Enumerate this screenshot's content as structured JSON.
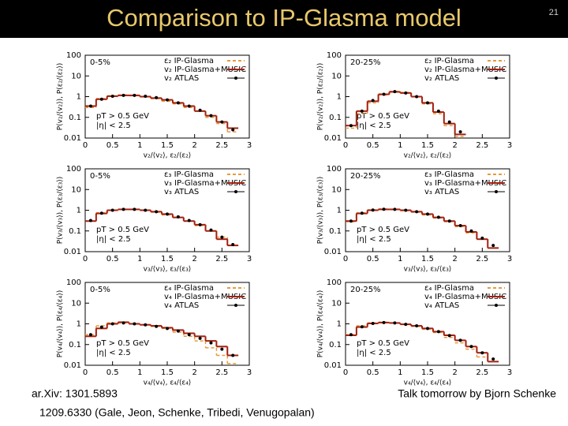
{
  "header": {
    "title": "Comparison to IP-Glasma model",
    "page_number": "21"
  },
  "footer": {
    "left_1": "ar.Xiv: 1301.5893",
    "left_2": "1209.6330 (Gale, Jeon, Schenke, Tribedi, Venugopalan)",
    "right": "Talk tomorrow by Bjorn Schenke"
  },
  "chart_data": [
    {
      "type": "line",
      "centrality": "0-5%",
      "xlabel": "v₂/⟨v₂⟩, ε₂/⟨ε₂⟩",
      "ylabel": "P(v₂/⟨v₂⟩), P(ε₂/⟨ε₂⟩)",
      "annotations": [
        "pT > 0.5 GeV",
        "|η| < 2.5"
      ],
      "log_scale": true,
      "xlim": [
        0,
        3
      ],
      "ylim": [
        0.01,
        100
      ],
      "xticks": [
        0,
        0.5,
        1,
        1.5,
        2,
        2.5,
        3
      ],
      "yticks": [
        0.01,
        0.1,
        1,
        10,
        100
      ],
      "x": [
        0.1,
        0.3,
        0.5,
        0.7,
        0.9,
        1.1,
        1.3,
        1.5,
        1.7,
        1.9,
        2.1,
        2.3,
        2.5,
        2.7,
        2.9
      ],
      "series": [
        {
          "name": "ε₂ IP-Glasma",
          "color": "#e89a3c",
          "style": "dashed",
          "values": [
            0.3,
            0.8,
            1.1,
            1.2,
            1.1,
            1.0,
            0.8,
            0.6,
            0.45,
            0.3,
            0.2,
            0.1,
            0.05,
            0.02,
            null
          ]
        },
        {
          "name": "v₂ IP-Glasma+MUSIC",
          "color": "#a3200f",
          "style": "solid",
          "values": [
            0.35,
            0.75,
            1.05,
            1.15,
            1.15,
            1.0,
            0.85,
            0.7,
            0.5,
            0.35,
            0.2,
            0.12,
            0.06,
            0.03,
            null
          ]
        },
        {
          "name": "v₂ ATLAS",
          "color": "#000000",
          "style": "points",
          "values": [
            0.35,
            0.75,
            1.05,
            1.15,
            1.15,
            1.05,
            0.9,
            0.7,
            0.5,
            0.35,
            0.22,
            0.12,
            0.06,
            0.025,
            null
          ]
        }
      ]
    },
    {
      "type": "line",
      "centrality": "20-25%",
      "xlabel": "v₂/⟨v₂⟩, ε₂/⟨ε₂⟩",
      "ylabel": "P(v₂/⟨v₂⟩), P(ε₂/⟨ε₂⟩)",
      "annotations": [
        "pT > 0.5 GeV",
        "|η| < 2.5"
      ],
      "log_scale": true,
      "xlim": [
        0,
        3
      ],
      "ylim": [
        0.01,
        100
      ],
      "xticks": [
        0,
        0.5,
        1,
        1.5,
        2,
        2.5,
        3
      ],
      "yticks": [
        0.01,
        0.1,
        1,
        10,
        100
      ],
      "x": [
        0.1,
        0.3,
        0.5,
        0.7,
        0.9,
        1.1,
        1.3,
        1.5,
        1.7,
        1.9,
        2.1,
        2.3,
        2.5,
        2.7,
        2.9
      ],
      "series": [
        {
          "name": "ε₂ IP-Glasma",
          "color": "#e89a3c",
          "style": "dashed",
          "values": [
            0.03,
            0.15,
            0.5,
            1.2,
            1.8,
            1.6,
            1.0,
            0.45,
            0.15,
            0.04,
            0.012,
            null,
            null,
            null,
            null
          ]
        },
        {
          "name": "v₂ IP-Glasma+MUSIC",
          "color": "#a3200f",
          "style": "solid",
          "values": [
            0.04,
            0.2,
            0.6,
            1.3,
            1.7,
            1.5,
            1.0,
            0.5,
            0.18,
            0.05,
            0.015,
            null,
            null,
            null,
            null
          ]
        },
        {
          "name": "v₂ ATLAS",
          "color": "#000000",
          "style": "points",
          "values": [
            0.04,
            0.2,
            0.65,
            1.3,
            1.75,
            1.5,
            1.0,
            0.5,
            0.2,
            0.06,
            0.02,
            null,
            null,
            null,
            null
          ]
        }
      ]
    },
    {
      "type": "line",
      "centrality": "0-5%",
      "xlabel": "v₃/⟨v₃⟩, ε₃/⟨ε₃⟩",
      "ylabel": "P(v₃/⟨v₃⟩), P(ε₃/⟨ε₃⟩)",
      "annotations": [
        "pT > 0.5 GeV",
        "|η| < 2.5"
      ],
      "log_scale": true,
      "xlim": [
        0,
        3
      ],
      "ylim": [
        0.01,
        100
      ],
      "xticks": [
        0,
        0.5,
        1,
        1.5,
        2,
        2.5,
        3
      ],
      "yticks": [
        0.01,
        0.1,
        1,
        10,
        100
      ],
      "x": [
        0.1,
        0.3,
        0.5,
        0.7,
        0.9,
        1.1,
        1.3,
        1.5,
        1.7,
        1.9,
        2.1,
        2.3,
        2.5,
        2.7,
        2.9
      ],
      "series": [
        {
          "name": "ε₃ IP-Glasma",
          "color": "#e89a3c",
          "style": "dashed",
          "values": [
            0.3,
            0.75,
            1.0,
            1.1,
            1.1,
            1.0,
            0.8,
            0.6,
            0.45,
            0.3,
            0.18,
            0.1,
            0.05,
            0.02,
            null
          ]
        },
        {
          "name": "v₃ IP-Glasma+MUSIC",
          "color": "#a3200f",
          "style": "solid",
          "values": [
            0.3,
            0.7,
            1.0,
            1.1,
            1.1,
            1.0,
            0.85,
            0.65,
            0.45,
            0.3,
            0.2,
            0.1,
            0.04,
            0.02,
            null
          ]
        },
        {
          "name": "v₃ ATLAS",
          "color": "#000000",
          "style": "points",
          "values": [
            0.32,
            0.72,
            1.0,
            1.1,
            1.1,
            1.0,
            0.85,
            0.65,
            0.48,
            0.32,
            0.2,
            0.11,
            0.05,
            0.022,
            null
          ]
        }
      ]
    },
    {
      "type": "line",
      "centrality": "20-25%",
      "xlabel": "v₃/⟨v₃⟩, ε₃/⟨ε₃⟩",
      "ylabel": "P(v₃/⟨v₃⟩), P(ε₃/⟨ε₃⟩)",
      "annotations": [
        "pT > 0.5 GeV",
        "|η| < 2.5"
      ],
      "log_scale": true,
      "xlim": [
        0,
        3
      ],
      "ylim": [
        0.01,
        100
      ],
      "xticks": [
        0,
        0.5,
        1,
        1.5,
        2,
        2.5,
        3
      ],
      "yticks": [
        0.01,
        0.1,
        1,
        10,
        100
      ],
      "x": [
        0.1,
        0.3,
        0.5,
        0.7,
        0.9,
        1.1,
        1.3,
        1.5,
        1.7,
        1.9,
        2.1,
        2.3,
        2.5,
        2.7,
        2.9
      ],
      "series": [
        {
          "name": "ε₃ IP-Glasma",
          "color": "#e89a3c",
          "style": "dashed",
          "values": [
            0.28,
            0.75,
            1.05,
            1.15,
            1.1,
            0.95,
            0.8,
            0.6,
            0.42,
            0.28,
            0.16,
            0.08,
            0.04,
            0.015,
            null
          ]
        },
        {
          "name": "v₃ IP-Glasma+MUSIC",
          "color": "#a3200f",
          "style": "solid",
          "values": [
            0.3,
            0.7,
            1.0,
            1.1,
            1.1,
            1.0,
            0.85,
            0.65,
            0.45,
            0.3,
            0.18,
            0.09,
            0.04,
            0.015,
            null
          ]
        },
        {
          "name": "v₃ ATLAS",
          "color": "#000000",
          "style": "points",
          "values": [
            0.3,
            0.72,
            1.02,
            1.12,
            1.1,
            1.0,
            0.85,
            0.65,
            0.46,
            0.3,
            0.18,
            0.1,
            0.045,
            0.02,
            null
          ]
        }
      ]
    },
    {
      "type": "line",
      "centrality": "0-5%",
      "xlabel": "v₄/⟨v₄⟩, ε₄/⟨ε₄⟩",
      "ylabel": "P(v₄/⟨v₄⟩), P(ε₄/⟨ε₄⟩)",
      "annotations": [
        "pT > 0.5 GeV",
        "|η| < 2.5"
      ],
      "log_scale": true,
      "xlim": [
        0,
        3
      ],
      "ylim": [
        0.01,
        100
      ],
      "xticks": [
        0,
        0.5,
        1,
        1.5,
        2,
        2.5,
        3
      ],
      "yticks": [
        0.01,
        0.1,
        1,
        10,
        100
      ],
      "x": [
        0.1,
        0.3,
        0.5,
        0.7,
        0.9,
        1.1,
        1.3,
        1.5,
        1.7,
        1.9,
        2.1,
        2.3,
        2.5,
        2.7,
        2.9
      ],
      "series": [
        {
          "name": "ε₄ IP-Glasma",
          "color": "#e89a3c",
          "style": "dashed",
          "values": [
            0.3,
            0.8,
            1.1,
            1.1,
            1.0,
            0.9,
            0.75,
            0.6,
            0.4,
            0.25,
            0.15,
            0.07,
            0.03,
            0.012,
            null
          ]
        },
        {
          "name": "v₄ IP-Glasma+MUSIC",
          "color": "#a3200f",
          "style": "solid",
          "values": [
            0.25,
            0.6,
            1.0,
            1.2,
            1.0,
            0.9,
            0.8,
            0.65,
            0.5,
            0.35,
            0.25,
            0.15,
            0.08,
            0.03,
            null
          ]
        },
        {
          "name": "v₄ ATLAS",
          "color": "#000000",
          "style": "points",
          "values": [
            0.3,
            0.7,
            1.0,
            1.1,
            1.0,
            0.9,
            0.75,
            0.6,
            0.45,
            0.3,
            0.2,
            0.12,
            0.06,
            0.03,
            null
          ]
        }
      ]
    },
    {
      "type": "line",
      "centrality": "20-25%",
      "xlabel": "v₄/⟨v₄⟩, ε₄/⟨ε₄⟩",
      "ylabel": "P(v₄/⟨v₄⟩), P(ε₄/⟨ε₄⟩)",
      "annotations": [
        "pT > 0.5 GeV",
        "|η| < 2.5"
      ],
      "log_scale": true,
      "xlim": [
        0,
        3
      ],
      "ylim": [
        0.01,
        100
      ],
      "xticks": [
        0,
        0.5,
        1,
        1.5,
        2,
        2.5,
        3
      ],
      "yticks": [
        0.01,
        0.1,
        1,
        10,
        100
      ],
      "x": [
        0.1,
        0.3,
        0.5,
        0.7,
        0.9,
        1.1,
        1.3,
        1.5,
        1.7,
        1.9,
        2.1,
        2.3,
        2.5,
        2.7,
        2.9
      ],
      "series": [
        {
          "name": "ε₄ IP-Glasma",
          "color": "#e89a3c",
          "style": "dashed",
          "values": [
            0.3,
            0.8,
            1.1,
            1.2,
            1.1,
            0.95,
            0.75,
            0.55,
            0.38,
            0.22,
            0.12,
            0.06,
            0.025,
            null,
            null
          ]
        },
        {
          "name": "v₄ IP-Glasma+MUSIC",
          "color": "#a3200f",
          "style": "solid",
          "values": [
            0.28,
            0.7,
            1.05,
            1.15,
            1.1,
            0.95,
            0.8,
            0.6,
            0.42,
            0.28,
            0.16,
            0.08,
            0.04,
            0.015,
            null
          ]
        },
        {
          "name": "v₄ ATLAS",
          "color": "#000000",
          "style": "points",
          "values": [
            0.3,
            0.72,
            1.05,
            1.15,
            1.1,
            0.95,
            0.8,
            0.6,
            0.42,
            0.27,
            0.16,
            0.08,
            0.04,
            0.02,
            null
          ]
        }
      ]
    }
  ]
}
